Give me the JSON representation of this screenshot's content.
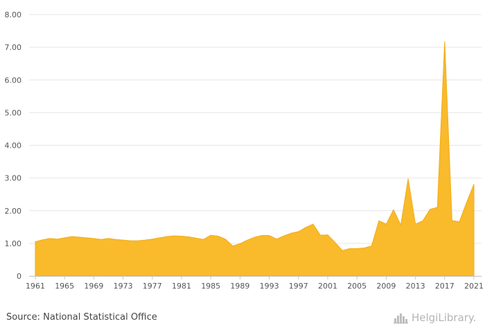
{
  "chart_data": {
    "type": "area",
    "title": "",
    "xlabel": "",
    "ylabel": "",
    "ylim": [
      0,
      8
    ],
    "y_ticks": [
      "0",
      "1.00",
      "2.00",
      "3.00",
      "4.00",
      "5.00",
      "6.00",
      "7.00",
      "8.00"
    ],
    "y_tick_values": [
      0,
      1,
      2,
      3,
      4,
      5,
      6,
      7,
      8
    ],
    "x_ticks": [
      "1961",
      "1965",
      "1969",
      "1973",
      "1977",
      "1981",
      "1985",
      "1989",
      "1993",
      "1997",
      "2001",
      "2005",
      "2009",
      "2013",
      "2017",
      "2021"
    ],
    "grid": true,
    "color": "#F9BA2B",
    "series": [
      {
        "name": "",
        "x": [
          1961,
          1962,
          1963,
          1964,
          1965,
          1966,
          1967,
          1968,
          1969,
          1970,
          1971,
          1972,
          1973,
          1974,
          1975,
          1976,
          1977,
          1978,
          1979,
          1980,
          1981,
          1982,
          1983,
          1984,
          1985,
          1986,
          1987,
          1988,
          1989,
          1990,
          1991,
          1992,
          1993,
          1994,
          1995,
          1996,
          1997,
          1998,
          1999,
          2000,
          2001,
          2002,
          2003,
          2004,
          2005,
          2006,
          2007,
          2008,
          2009,
          2010,
          2011,
          2012,
          2013,
          2014,
          2015,
          2016,
          2017,
          2018,
          2019,
          2020,
          2021
        ],
        "values": [
          1.05,
          1.11,
          1.15,
          1.13,
          1.17,
          1.21,
          1.19,
          1.17,
          1.15,
          1.12,
          1.15,
          1.12,
          1.1,
          1.08,
          1.08,
          1.1,
          1.13,
          1.17,
          1.21,
          1.23,
          1.22,
          1.2,
          1.16,
          1.12,
          1.25,
          1.22,
          1.13,
          0.92,
          0.99,
          1.1,
          1.19,
          1.24,
          1.24,
          1.13,
          1.23,
          1.31,
          1.36,
          1.49,
          1.59,
          1.25,
          1.26,
          1.03,
          0.78,
          0.84,
          0.84,
          0.86,
          0.92,
          1.69,
          1.59,
          2.03,
          1.56,
          2.98,
          1.59,
          1.69,
          2.04,
          2.1,
          7.18,
          1.7,
          1.66,
          2.25,
          2.81
        ]
      }
    ]
  },
  "footer": {
    "source": "Source: National Statistical Office",
    "brand": "HelgiLibrary."
  },
  "icons": {
    "brand_logo": "helgi-library-logo-icon"
  }
}
